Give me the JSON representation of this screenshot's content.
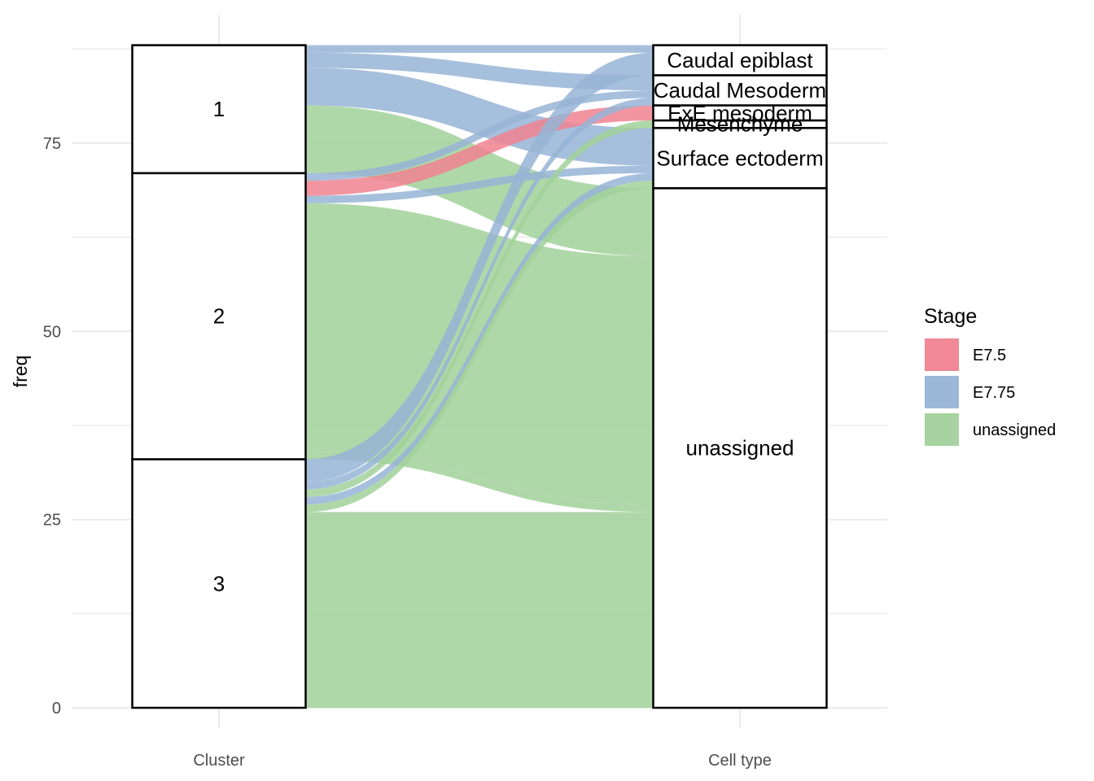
{
  "chart_data": {
    "type": "alluvial",
    "ylabel": "freq",
    "axes": [
      "Cluster",
      "Cell type"
    ],
    "yticks": [
      0,
      25,
      50,
      75
    ],
    "ylim": [
      0,
      88
    ],
    "grid": true,
    "legend": {
      "title": "Stage",
      "position": "right",
      "entries": [
        {
          "name": "E7.5",
          "color": "#F08390"
        },
        {
          "name": "E7.75",
          "color": "#97B4D6"
        },
        {
          "name": "unassigned",
          "color": "#A1D19A"
        }
      ]
    },
    "strata": {
      "Cluster": [
        "1",
        "2",
        "3"
      ],
      "Cell type": [
        "Caudal epiblast",
        "Caudal Mesoderm",
        "ExE mesoderm",
        "Mesenchyme",
        "Surface ectoderm",
        "unassigned"
      ]
    },
    "flows": [
      {
        "cluster": "1",
        "cell_type": "Caudal epiblast",
        "stage": "E7.75",
        "freq": 1
      },
      {
        "cluster": "1",
        "cell_type": "Caudal Mesoderm",
        "stage": "E7.75",
        "freq": 2
      },
      {
        "cluster": "1",
        "cell_type": "Surface ectoderm",
        "stage": "E7.75",
        "freq": 5
      },
      {
        "cluster": "1",
        "cell_type": "unassigned",
        "stage": "unassigned",
        "freq": 9
      },
      {
        "cluster": "2",
        "cell_type": "Caudal Mesoderm",
        "stage": "E7.75",
        "freq": 1
      },
      {
        "cluster": "2",
        "cell_type": "ExE mesoderm",
        "stage": "E7.5",
        "freq": 2
      },
      {
        "cluster": "2",
        "cell_type": "Surface ectoderm",
        "stage": "E7.75",
        "freq": 1
      },
      {
        "cluster": "2",
        "cell_type": "unassigned",
        "stage": "unassigned",
        "freq": 33
      },
      {
        "cluster": "2",
        "cell_type": "unassigned",
        "stage": "unassigned",
        "freq": 1
      },
      {
        "cluster": "3",
        "cell_type": "Caudal epiblast",
        "stage": "E7.75",
        "freq": 3
      },
      {
        "cluster": "3",
        "cell_type": "Caudal Mesoderm",
        "stage": "E7.75",
        "freq": 1
      },
      {
        "cluster": "3",
        "cell_type": "Mesenchyme",
        "stage": "unassigned",
        "freq": 1
      },
      {
        "cluster": "3",
        "cell_type": "Surface ectoderm",
        "stage": "E7.75",
        "freq": 1
      },
      {
        "cluster": "3",
        "cell_type": "Surface ectoderm",
        "stage": "unassigned",
        "freq": 1
      },
      {
        "cluster": "3",
        "cell_type": "unassigned",
        "stage": "unassigned",
        "freq": 26
      }
    ]
  }
}
